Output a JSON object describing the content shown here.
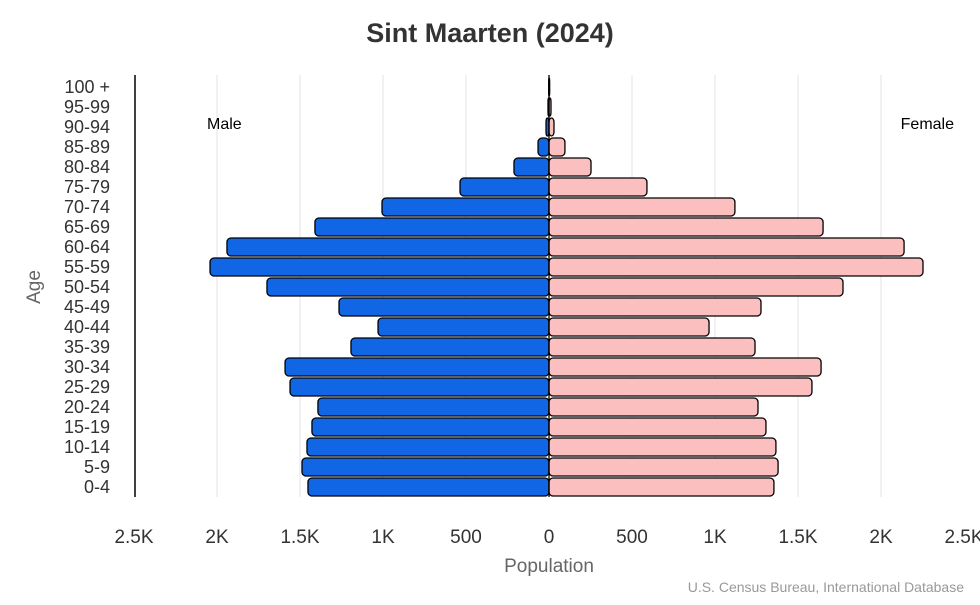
{
  "chart_data": {
    "type": "bar",
    "orientation": "horizontal",
    "title": "Sint Maarten (2024)",
    "xlabel": "Population",
    "ylabel": "Age",
    "source": "U.S. Census Bureau, International Database",
    "xlim": [
      -2500,
      2500
    ],
    "x_ticks": [
      "2.5K",
      "2K",
      "1.5K",
      "1K",
      "500",
      "0",
      "500",
      "1K",
      "1.5K",
      "2K",
      "2.5K"
    ],
    "x_tick_values": [
      -2500,
      -2000,
      -1500,
      -1000,
      -500,
      0,
      500,
      1000,
      1500,
      2000,
      2500
    ],
    "grid": true,
    "categories": [
      "0-4",
      "5-9",
      "10-14",
      "15-19",
      "20-24",
      "25-29",
      "30-34",
      "35-39",
      "40-44",
      "45-49",
      "50-54",
      "55-59",
      "60-64",
      "65-69",
      "70-74",
      "75-79",
      "80-84",
      "85-89",
      "90-94",
      "95-99",
      "100 +"
    ],
    "series": [
      {
        "name": "Male",
        "color": "#1166e6",
        "values": [
          1452,
          1488,
          1458,
          1428,
          1392,
          1560,
          1590,
          1193,
          1030,
          1265,
          1699,
          2042,
          1940,
          1410,
          1006,
          536,
          211,
          66,
          18,
          6,
          2
        ]
      },
      {
        "name": "Female",
        "color": "#fbbfbf",
        "values": [
          1355,
          1380,
          1367,
          1307,
          1259,
          1584,
          1639,
          1241,
          964,
          1277,
          1771,
          2253,
          2139,
          1651,
          1120,
          590,
          253,
          96,
          30,
          12,
          4
        ]
      }
    ]
  }
}
